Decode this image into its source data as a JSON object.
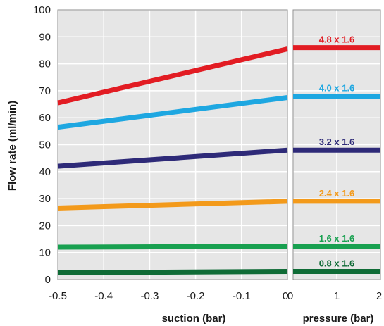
{
  "chart_data": {
    "type": "line",
    "ylabel": "Flow rate (ml/min)",
    "ylim": [
      0,
      100
    ],
    "yticks": [
      "0",
      "10",
      "20",
      "30",
      "40",
      "50",
      "60",
      "70",
      "80",
      "90",
      "100"
    ],
    "grid": true,
    "panels": [
      {
        "name": "suction",
        "xlabel": "suction (bar)",
        "xlim": [
          -0.5,
          0
        ],
        "xticks": [
          "-0.5",
          "-0.4",
          "-0.3",
          "-0.2",
          "-0.1",
          "0"
        ]
      },
      {
        "name": "pressure",
        "xlabel": "pressure (bar)",
        "xlim": [
          0,
          2
        ],
        "xticks": [
          "0",
          "1",
          "2"
        ]
      }
    ],
    "series": [
      {
        "name": "4.8 x 1.6",
        "color": "#e21c23",
        "suction": {
          "x": [
            -0.5,
            0
          ],
          "y": [
            65.5,
            85.5
          ]
        },
        "pressure": {
          "x": [
            0,
            2
          ],
          "y": [
            86,
            86
          ]
        }
      },
      {
        "name": "4.0 x 1.6",
        "color": "#1ea7e1",
        "suction": {
          "x": [
            -0.5,
            0
          ],
          "y": [
            56.5,
            67.5
          ]
        },
        "pressure": {
          "x": [
            0,
            2
          ],
          "y": [
            68,
            68
          ]
        }
      },
      {
        "name": "3.2 x 1.6",
        "color": "#2e2a78",
        "suction": {
          "x": [
            -0.5,
            0
          ],
          "y": [
            42,
            48
          ]
        },
        "pressure": {
          "x": [
            0,
            2
          ],
          "y": [
            48,
            48
          ]
        }
      },
      {
        "name": "2.4 x 1.6",
        "color": "#f39a1b",
        "suction": {
          "x": [
            -0.5,
            0
          ],
          "y": [
            26.5,
            29
          ]
        },
        "pressure": {
          "x": [
            0,
            2
          ],
          "y": [
            29,
            29
          ]
        }
      },
      {
        "name": "1.6 x 1.6",
        "color": "#18a050",
        "suction": {
          "x": [
            -0.5,
            0
          ],
          "y": [
            12,
            12.3
          ]
        },
        "pressure": {
          "x": [
            0,
            2
          ],
          "y": [
            12.3,
            12.3
          ]
        }
      },
      {
        "name": "0.8 x 1.6",
        "color": "#0f6b36",
        "suction": {
          "x": [
            -0.5,
            0
          ],
          "y": [
            2.5,
            3
          ]
        },
        "pressure": {
          "x": [
            0,
            2
          ],
          "y": [
            3,
            3
          ]
        }
      }
    ]
  }
}
